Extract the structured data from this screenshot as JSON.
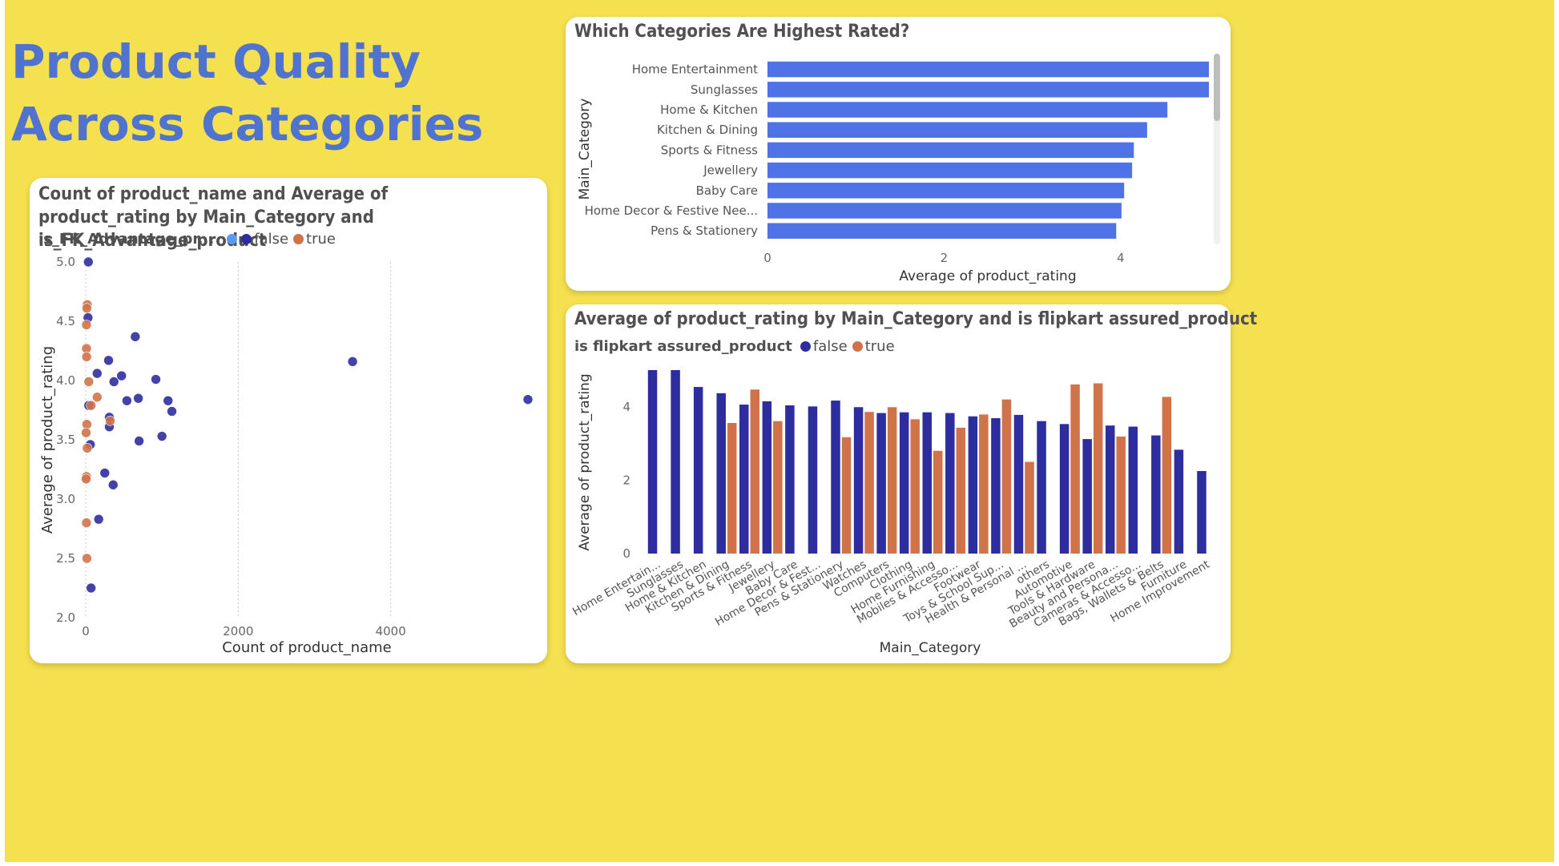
{
  "page": {
    "title": "Product Quality\nAcross  Categories",
    "background": "#f5e14f",
    "title_color": "#4f73cf"
  },
  "colors": {
    "false": "#2d2d9f",
    "true": "#d0734a",
    "bar": "#4f73e6",
    "legend_blank": "#5b9bef"
  },
  "chart_data": [
    {
      "id": "scatter",
      "type": "scatter",
      "title": "Count of product_name and Average of product_rating by Main_Category and is_FK_Advantage_product",
      "legend_title": "is_FK_Advantage_pr...",
      "legend": [
        "",
        "false",
        "true"
      ],
      "xlabel": "Count of product_name",
      "ylabel": "Average of product_rating",
      "xlim": [
        0,
        5800
      ],
      "ylim": [
        2.0,
        5.0
      ],
      "xticks": [
        0,
        2000,
        4000
      ],
      "yticks": [
        "5.0",
        "4.5",
        "4.0",
        "3.5",
        "3.0",
        "2.5",
        "2.0"
      ],
      "grid": "vertical dotted",
      "series": [
        {
          "name": "false",
          "points": [
            [
              35,
              5.0
            ],
            [
              30,
              4.53
            ],
            [
              650,
              4.37
            ],
            [
              300,
              4.17
            ],
            [
              150,
              4.06
            ],
            [
              470,
              4.04
            ],
            [
              920,
              4.01
            ],
            [
              370,
              3.99
            ],
            [
              540,
              3.83
            ],
            [
              690,
              3.85
            ],
            [
              1080,
              3.83
            ],
            [
              1130,
              3.74
            ],
            [
              40,
              3.79
            ],
            [
              310,
              3.69
            ],
            [
              310,
              3.61
            ],
            [
              700,
              3.49
            ],
            [
              1000,
              3.53
            ],
            [
              60,
              3.46
            ],
            [
              250,
              3.22
            ],
            [
              360,
              3.12
            ],
            [
              170,
              2.83
            ],
            [
              70,
              2.25
            ],
            [
              3500,
              4.16
            ],
            [
              5800,
              3.84
            ]
          ]
        },
        {
          "name": "true",
          "points": [
            [
              20,
              4.64
            ],
            [
              15,
              4.61
            ],
            [
              10,
              4.47
            ],
            [
              10,
              4.27
            ],
            [
              12,
              4.2
            ],
            [
              40,
              3.99
            ],
            [
              150,
              3.86
            ],
            [
              70,
              3.79
            ],
            [
              15,
              3.63
            ],
            [
              320,
              3.66
            ],
            [
              5,
              3.56
            ],
            [
              20,
              3.43
            ],
            [
              10,
              3.19
            ],
            [
              5,
              3.17
            ],
            [
              10,
              2.8
            ],
            [
              15,
              2.5
            ]
          ]
        }
      ]
    },
    {
      "id": "hbar",
      "type": "bar",
      "orientation": "horizontal",
      "title": "Which Categories Are Highest Rated?",
      "xlabel": "Average of product_rating",
      "ylabel": "Main_Category",
      "xlim": [
        0,
        5
      ],
      "xticks": [
        "0",
        "2",
        "4"
      ],
      "categories": [
        "Home Entertainment",
        "Sunglasses",
        "Home & Kitchen",
        "Kitchen & Dining",
        "Sports & Fitness",
        "Jewellery",
        "Baby Care",
        "Home Decor & Festive Nee...",
        "Pens & Stationery"
      ],
      "values": [
        5.0,
        5.0,
        4.53,
        4.3,
        4.15,
        4.13,
        4.04,
        4.01,
        3.95
      ]
    },
    {
      "id": "cbar",
      "type": "bar",
      "orientation": "vertical",
      "title": "Average of product_rating by Main_Category and is flipkart assured_product",
      "legend_title": "is flipkart assured_product",
      "legend": [
        "false",
        "true"
      ],
      "xlabel": "Main_Category",
      "ylabel": "Average of product_rating",
      "ylim": [
        0,
        5
      ],
      "yticks": [
        "0",
        "2",
        "4"
      ],
      "categories": [
        "Home Entertain...",
        "Sunglasses",
        "Home & Kitchen",
        "Kitchen & Dining",
        "Sports & Fitness",
        "Jewellery",
        "Baby Care",
        "Home Decor & Fest...",
        "Pens & Stationery",
        "Watches",
        "Computers",
        "Clothing",
        "Home Furnishing",
        "Mobiles & Accesso...",
        "Footwear",
        "Toys & School Sup...",
        "Health & Personal ...",
        "others",
        "Automotive",
        "Tools & Hardware",
        "Beauty and Persona...",
        "Cameras & Accesso...",
        "Bags, Wallets & Belts",
        "Furniture",
        "Home Improvement"
      ],
      "series": [
        {
          "name": "false",
          "values": [
            5.0,
            5.0,
            4.54,
            4.37,
            4.06,
            4.15,
            4.04,
            4.01,
            4.17,
            3.99,
            3.83,
            3.85,
            3.85,
            3.83,
            3.74,
            3.69,
            3.78,
            3.61,
            3.53,
            3.12,
            3.49,
            3.46,
            3.22,
            2.83,
            2.25
          ]
        },
        {
          "name": "true",
          "values": [
            null,
            null,
            null,
            3.56,
            4.47,
            3.61,
            null,
            null,
            3.17,
            3.86,
            3.99,
            3.66,
            2.8,
            3.43,
            3.79,
            4.2,
            2.5,
            null,
            4.61,
            4.64,
            3.19,
            null,
            4.27,
            null,
            null
          ]
        }
      ]
    }
  ]
}
